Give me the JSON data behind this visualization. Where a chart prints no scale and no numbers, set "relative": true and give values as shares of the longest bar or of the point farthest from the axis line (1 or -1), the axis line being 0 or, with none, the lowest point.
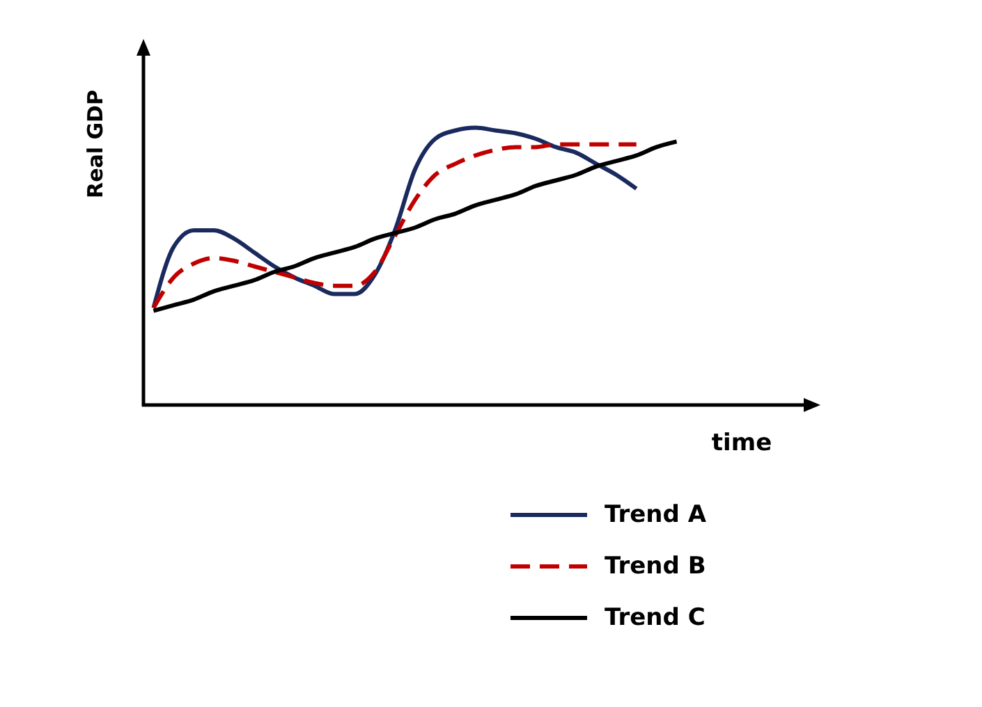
{
  "chart_data": {
    "type": "line",
    "xlabel": "time",
    "ylabel": "Real GDP",
    "relative": true,
    "tick_labels": false,
    "legend": "bottom",
    "categories": [
      null,
      null,
      null,
      null,
      null,
      null,
      null,
      null,
      null,
      null,
      null,
      null,
      null,
      null,
      null,
      null,
      null,
      null,
      null,
      null,
      null,
      null,
      null,
      null,
      null,
      null,
      null
    ],
    "series": [
      {
        "name": "Trend A",
        "color": "#1b2a5e",
        "line_style": "solid",
        "values": [
          0.35,
          0.57,
          0.63,
          0.63,
          0.6,
          0.55,
          0.5,
          0.46,
          0.43,
          0.4,
          0.4,
          0.47,
          0.63,
          0.85,
          0.96,
          0.99,
          1.0,
          0.99,
          0.98,
          0.96,
          0.93,
          0.91,
          0.87,
          0.83,
          0.78,
          null,
          null
        ]
      },
      {
        "name": "Trend B",
        "color": "#c00000",
        "line_style": "dashed",
        "values": [
          0.35,
          0.46,
          0.51,
          0.53,
          0.52,
          0.5,
          0.48,
          0.46,
          0.44,
          0.43,
          0.43,
          0.48,
          0.61,
          0.74,
          0.83,
          0.87,
          0.9,
          0.92,
          0.93,
          0.93,
          0.94,
          0.94,
          0.94,
          0.94,
          0.94,
          null,
          null
        ]
      },
      {
        "name": "Trend C",
        "color": "#000000",
        "line_style": "solid",
        "values": [
          0.34,
          0.36,
          0.38,
          0.41,
          0.43,
          0.45,
          0.48,
          0.5,
          0.53,
          0.55,
          0.57,
          0.6,
          0.62,
          0.64,
          0.67,
          0.69,
          0.72,
          0.74,
          0.76,
          0.79,
          0.81,
          0.83,
          0.86,
          0.88,
          0.9,
          0.93,
          0.95
        ]
      }
    ]
  }
}
